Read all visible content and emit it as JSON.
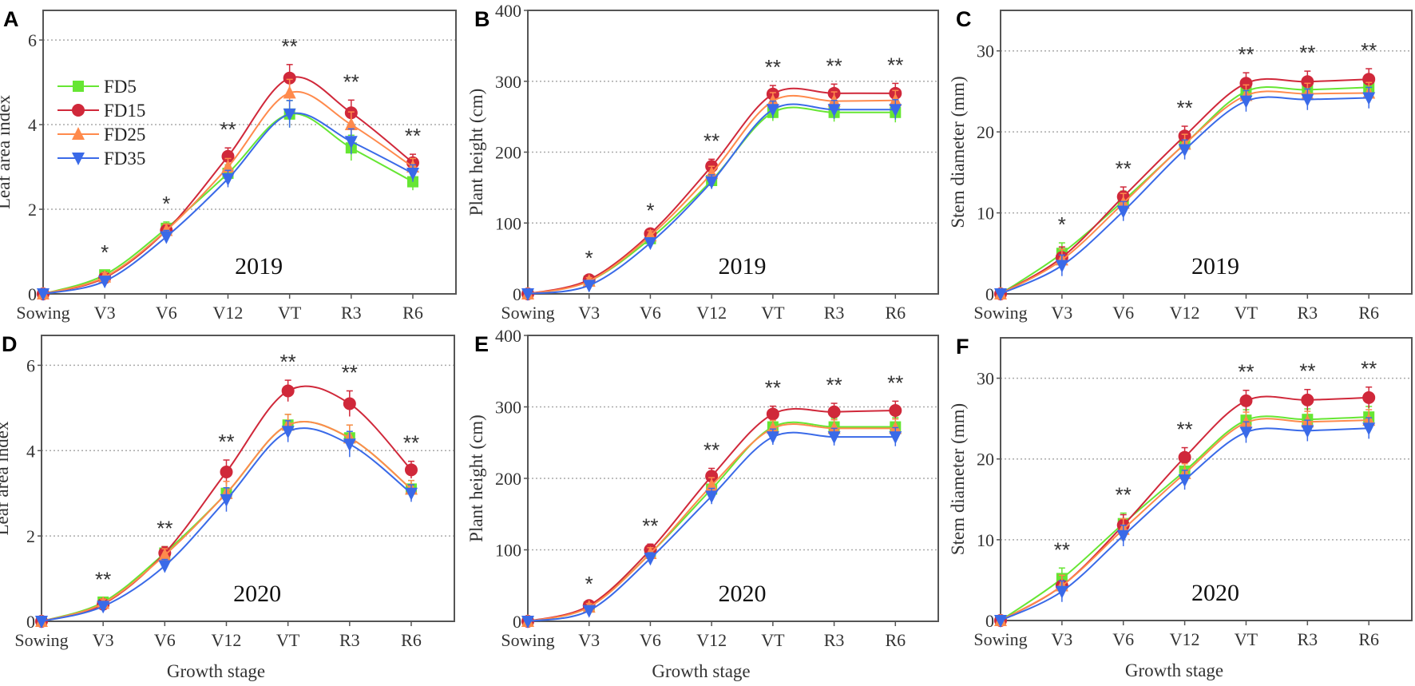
{
  "series_styles": [
    {
      "name": "FD5",
      "color": "#66e633",
      "marker": "square"
    },
    {
      "name": "FD15",
      "color": "#d0283a",
      "marker": "circle"
    },
    {
      "name": "FD25",
      "color": "#ff8a4c",
      "marker": "triangle-up"
    },
    {
      "name": "FD35",
      "color": "#3a6ae8",
      "marker": "triangle-down"
    }
  ],
  "chart_data": [
    {
      "panel": "A",
      "type": "line",
      "annotation": "2019",
      "categories": [
        "Sowing",
        "V3",
        "V6",
        "V12",
        "VT",
        "R3",
        "R6"
      ],
      "ylabel": "Leaf area index",
      "xlabel": "",
      "ylim": [
        0,
        6.7
      ],
      "yticks": [
        0,
        2,
        4,
        6
      ],
      "grid": true,
      "legend": "top-left",
      "significance": [
        "",
        "*",
        "*",
        "**",
        "**",
        "**",
        "**"
      ],
      "error": [
        0.05,
        0.1,
        0.15,
        0.2,
        0.32,
        0.3,
        0.2
      ],
      "series": [
        {
          "name": "FD5",
          "values": [
            0,
            0.45,
            1.55,
            2.85,
            4.25,
            3.45,
            2.65
          ]
        },
        {
          "name": "FD15",
          "values": [
            0,
            0.38,
            1.5,
            3.25,
            5.1,
            4.28,
            3.1
          ]
        },
        {
          "name": "FD25",
          "values": [
            0,
            0.4,
            1.5,
            3.0,
            4.75,
            4.0,
            3.0
          ]
        },
        {
          "name": "FD35",
          "values": [
            0,
            0.3,
            1.35,
            2.72,
            4.25,
            3.6,
            2.85
          ]
        }
      ]
    },
    {
      "panel": "B",
      "type": "line",
      "annotation": "2019",
      "categories": [
        "Sowing",
        "V3",
        "V6",
        "V12",
        "VT",
        "R3",
        "R6"
      ],
      "ylabel": "Plant height (cm)",
      "xlabel": "",
      "ylim": [
        0,
        400
      ],
      "yticks": [
        0,
        100,
        200,
        300,
        400
      ],
      "grid": true,
      "significance": [
        "",
        "*",
        "*",
        "**",
        "**",
        "**",
        "**"
      ],
      "error": [
        2,
        5,
        7,
        10,
        12,
        13,
        14
      ],
      "series": [
        {
          "name": "FD5",
          "values": [
            0,
            18,
            78,
            160,
            256,
            256,
            256
          ]
        },
        {
          "name": "FD15",
          "values": [
            0,
            20,
            85,
            180,
            282,
            283,
            283
          ]
        },
        {
          "name": "FD25",
          "values": [
            0,
            18,
            82,
            170,
            272,
            272,
            273
          ]
        },
        {
          "name": "FD35",
          "values": [
            0,
            12,
            72,
            158,
            260,
            260,
            260
          ]
        }
      ]
    },
    {
      "panel": "C",
      "type": "line",
      "annotation": "2019",
      "categories": [
        "Sowing",
        "V3",
        "V6",
        "V12",
        "VT",
        "R3",
        "R6"
      ],
      "ylabel": "Stem diameter (mm)",
      "xlabel": "",
      "ylim": [
        0,
        35
      ],
      "yticks": [
        0,
        10,
        20,
        30
      ],
      "grid": true,
      "significance": [
        "",
        "*",
        "**",
        "**",
        "**",
        "**",
        "**"
      ],
      "error": [
        0.2,
        1.3,
        1.2,
        1.2,
        1.3,
        1.3,
        1.3
      ],
      "series": [
        {
          "name": "FD5",
          "values": [
            0,
            5,
            11.5,
            18.5,
            25,
            25.2,
            25.5
          ]
        },
        {
          "name": "FD15",
          "values": [
            0,
            4.5,
            12,
            19.5,
            26,
            26.2,
            26.5
          ]
        },
        {
          "name": "FD25",
          "values": [
            0,
            4.2,
            11.2,
            18.5,
            24.5,
            24.7,
            24.8
          ]
        },
        {
          "name": "FD35",
          "values": [
            0,
            3.5,
            10.2,
            17.8,
            23.8,
            24,
            24.2
          ]
        }
      ]
    },
    {
      "panel": "D",
      "type": "line",
      "annotation": "2020",
      "categories": [
        "Sowing",
        "V3",
        "V6",
        "V12",
        "VT",
        "R3",
        "R6"
      ],
      "ylabel": "Leaf area index",
      "xlabel": "Growth stage",
      "ylim": [
        0,
        6.7
      ],
      "yticks": [
        0,
        2,
        4,
        6
      ],
      "grid": true,
      "significance": [
        "",
        "**",
        "**",
        "**",
        "**",
        "**",
        "**"
      ],
      "error": [
        0.05,
        0.1,
        0.15,
        0.28,
        0.25,
        0.3,
        0.2
      ],
      "series": [
        {
          "name": "FD5",
          "values": [
            0,
            0.45,
            1.6,
            3.0,
            4.6,
            4.3,
            3.1
          ]
        },
        {
          "name": "FD15",
          "values": [
            0,
            0.4,
            1.6,
            3.5,
            5.4,
            5.1,
            3.55
          ]
        },
        {
          "name": "FD25",
          "values": [
            0,
            0.42,
            1.55,
            3.0,
            4.6,
            4.3,
            3.1
          ]
        },
        {
          "name": "FD35",
          "values": [
            0,
            0.35,
            1.3,
            2.85,
            4.45,
            4.15,
            3.0
          ]
        }
      ]
    },
    {
      "panel": "E",
      "type": "line",
      "annotation": "2020",
      "categories": [
        "Sowing",
        "V3",
        "V6",
        "V12",
        "VT",
        "R3",
        "R6"
      ],
      "ylabel": "Plant height (cm)",
      "xlabel": "Growth stage",
      "ylim": [
        0,
        400
      ],
      "yticks": [
        0,
        100,
        200,
        300,
        400
      ],
      "grid": true,
      "significance": [
        "",
        "*",
        "**",
        "**",
        "**",
        "**",
        "**"
      ],
      "error": [
        2,
        5,
        8,
        11,
        11,
        12,
        13
      ],
      "series": [
        {
          "name": "FD5",
          "values": [
            0,
            20,
            95,
            185,
            272,
            272,
            272
          ]
        },
        {
          "name": "FD15",
          "values": [
            0,
            22,
            100,
            203,
            290,
            293,
            295
          ]
        },
        {
          "name": "FD25",
          "values": [
            0,
            20,
            95,
            190,
            270,
            270,
            270
          ]
        },
        {
          "name": "FD35",
          "values": [
            0,
            15,
            88,
            175,
            258,
            258,
            258
          ]
        }
      ]
    },
    {
      "panel": "F",
      "type": "line",
      "annotation": "2020",
      "categories": [
        "Sowing",
        "V3",
        "V6",
        "V12",
        "VT",
        "R3",
        "R6"
      ],
      "ylabel": "Stem diameter (mm)",
      "xlabel": "Growth stage",
      "ylim": [
        0,
        35
      ],
      "yticks": [
        0,
        10,
        20,
        30
      ],
      "grid": true,
      "significance": [
        "",
        "**",
        "**",
        "**",
        "**",
        "**",
        "**"
      ],
      "error": [
        0.2,
        1.3,
        1.3,
        1.2,
        1.3,
        1.3,
        1.3
      ],
      "series": [
        {
          "name": "FD5",
          "values": [
            0,
            5.2,
            12,
            18.5,
            24.8,
            24.9,
            25.2
          ]
        },
        {
          "name": "FD15",
          "values": [
            0,
            4.3,
            11.8,
            20.2,
            27.2,
            27.3,
            27.6
          ]
        },
        {
          "name": "FD25",
          "values": [
            0,
            4.3,
            11.3,
            18.2,
            24.5,
            24.6,
            24.8
          ]
        },
        {
          "name": "FD35",
          "values": [
            0,
            3.6,
            10.5,
            17.4,
            23.3,
            23.5,
            23.8
          ]
        }
      ]
    }
  ]
}
